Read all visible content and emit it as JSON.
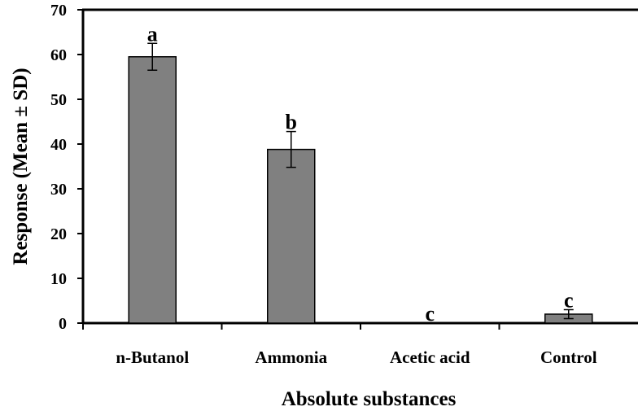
{
  "chart_data": {
    "type": "bar",
    "title": "",
    "xlabel": "Absolute substances",
    "ylabel": "Response (Mean ± SD)",
    "ylim": [
      0,
      70
    ],
    "yticks": [
      0,
      10,
      20,
      30,
      40,
      50,
      60,
      70
    ],
    "categories": [
      "n-Butanol",
      "Ammonia",
      "Acetic acid",
      "Control"
    ],
    "values": [
      59.5,
      38.8,
      0,
      2
    ],
    "errors": [
      3,
      4,
      0,
      1
    ],
    "significance_letters": [
      "a",
      "b",
      "c",
      "c"
    ],
    "grid": false,
    "legend": "none",
    "bar_color": "#808080",
    "bar_edge_color": "#000000"
  }
}
